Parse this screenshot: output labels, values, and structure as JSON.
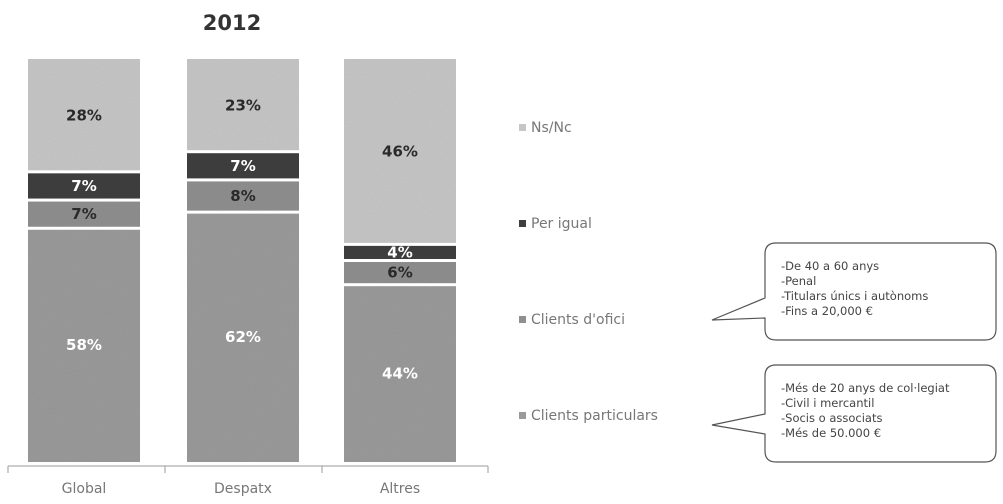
{
  "chart_data": {
    "type": "bar",
    "stacked": true,
    "percent_stacked": true,
    "title": "2012",
    "xlabel": "",
    "ylabel": "",
    "ylim": [
      0,
      100
    ],
    "grid": false,
    "legend_position": "right",
    "categories": [
      "Global",
      "Despatx",
      "Altres"
    ],
    "series": [
      {
        "name": "Clients particulars",
        "values": [
          58,
          62,
          44
        ],
        "labels": [
          "58%",
          "62%",
          "44%"
        ],
        "color": "#9a9a9a",
        "label_color": "#ffffff"
      },
      {
        "name": "Clients d'ofici",
        "values": [
          7,
          8,
          6
        ],
        "labels": [
          "7%",
          "8%",
          "6%"
        ],
        "color": "#8f8f8f",
        "label_color": "#2a2a2a"
      },
      {
        "name": "Per igual",
        "values": [
          7,
          7,
          4
        ],
        "labels": [
          "7%",
          "7%",
          "4%"
        ],
        "color": "#3f3f3f",
        "label_color": "#ffffff"
      },
      {
        "name": "Ns/Nc",
        "values": [
          28,
          23,
          46
        ],
        "labels": [
          "28%",
          "23%",
          "46%"
        ],
        "color": "#c6c6c6",
        "label_color": "#2a2a2a"
      }
    ],
    "legend_order": [
      "Ns/Nc",
      "Per igual",
      "Clients d'ofici",
      "Clients particulars"
    ],
    "annotations": [
      {
        "points_to": "Clients d'ofici",
        "lines": [
          "-De 40 a 60 anys",
          "-Penal",
          "-Titulars únics i autònoms",
          "-Fins a 20,000 €"
        ]
      },
      {
        "points_to": "Clients particulars",
        "lines": [
          "-Més de 20 anys de col·legiat",
          "-Civil i mercantil",
          "-Socis o associats",
          "-Més de 50.000 €"
        ]
      }
    ]
  }
}
